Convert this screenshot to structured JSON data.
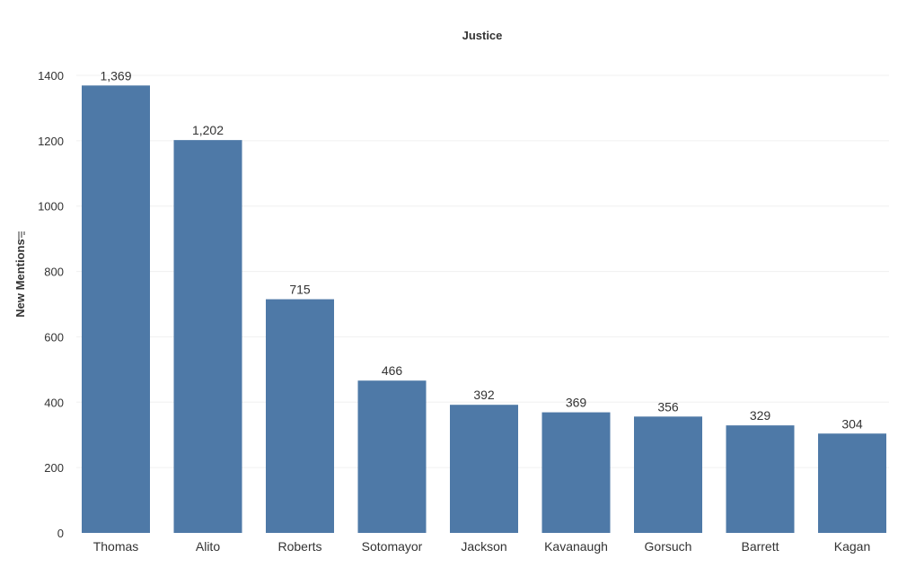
{
  "chart_data": {
    "type": "bar",
    "title": "Justice",
    "xlabel": "",
    "ylabel": "New Mentions",
    "categories": [
      "Thomas",
      "Alito",
      "Roberts",
      "Sotomayor",
      "Jackson",
      "Kavanaugh",
      "Gorsuch",
      "Barrett",
      "Kagan"
    ],
    "values": [
      1369,
      1202,
      715,
      466,
      392,
      369,
      356,
      329,
      304
    ],
    "data_labels": [
      "1,369",
      "1,202",
      "715",
      "466",
      "392",
      "369",
      "356",
      "329",
      "304"
    ],
    "y_ticks": [
      0,
      200,
      400,
      600,
      800,
      1000,
      1200,
      1400
    ],
    "y_tick_labels": [
      "0",
      "200",
      "400",
      "600",
      "800",
      "1000",
      "1200",
      "1400"
    ],
    "ylim": [
      0,
      1400
    ],
    "grid": true,
    "legend": "none",
    "sorted": "descending",
    "colors": {
      "bar": "#4e79a7",
      "grid": "#f0f0f0",
      "text": "#333333"
    },
    "icons": {
      "sort": "sort-descending-icon"
    }
  }
}
